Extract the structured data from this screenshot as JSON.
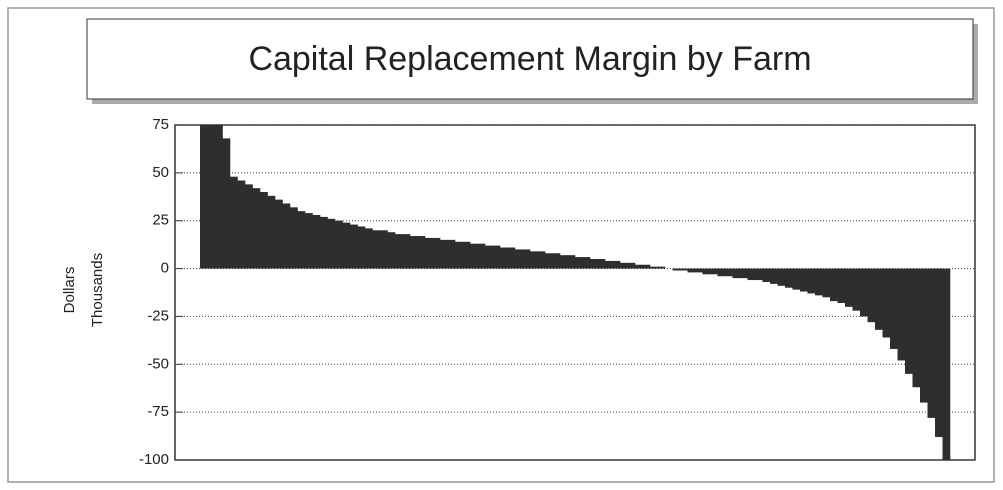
{
  "chart_data": {
    "type": "bar",
    "title": "Capital Replacement Margin by Farm",
    "ylabel": "Dollars",
    "ylabel2": "Thousands",
    "values": [
      75,
      75,
      75,
      68,
      48,
      46,
      44,
      42,
      40,
      38,
      36,
      34,
      32,
      30,
      29,
      28,
      27,
      26,
      25,
      24,
      23,
      22,
      21,
      20,
      20,
      19,
      18,
      18,
      17,
      17,
      16,
      16,
      15,
      15,
      14,
      14,
      13,
      13,
      12,
      12,
      11,
      11,
      10,
      10,
      9,
      9,
      8,
      8,
      7,
      7,
      6,
      6,
      5,
      5,
      4,
      4,
      3,
      3,
      2,
      2,
      1,
      1,
      0,
      -1,
      -1,
      -2,
      -2,
      -3,
      -3,
      -4,
      -4,
      -5,
      -5,
      -6,
      -6,
      -7,
      -8,
      -9,
      -10,
      -11,
      -12,
      -13,
      -14,
      -15,
      -17,
      -18,
      -20,
      -22,
      -25,
      -28,
      -32,
      -36,
      -42,
      -48,
      -55,
      -62,
      -70,
      -78,
      -88,
      -100
    ],
    "color": "#2e2e2e",
    "ylim": [
      -100,
      75
    ],
    "yticks": [
      75,
      50,
      25,
      0,
      -25,
      -50,
      -75,
      -100
    ],
    "grid": true
  }
}
